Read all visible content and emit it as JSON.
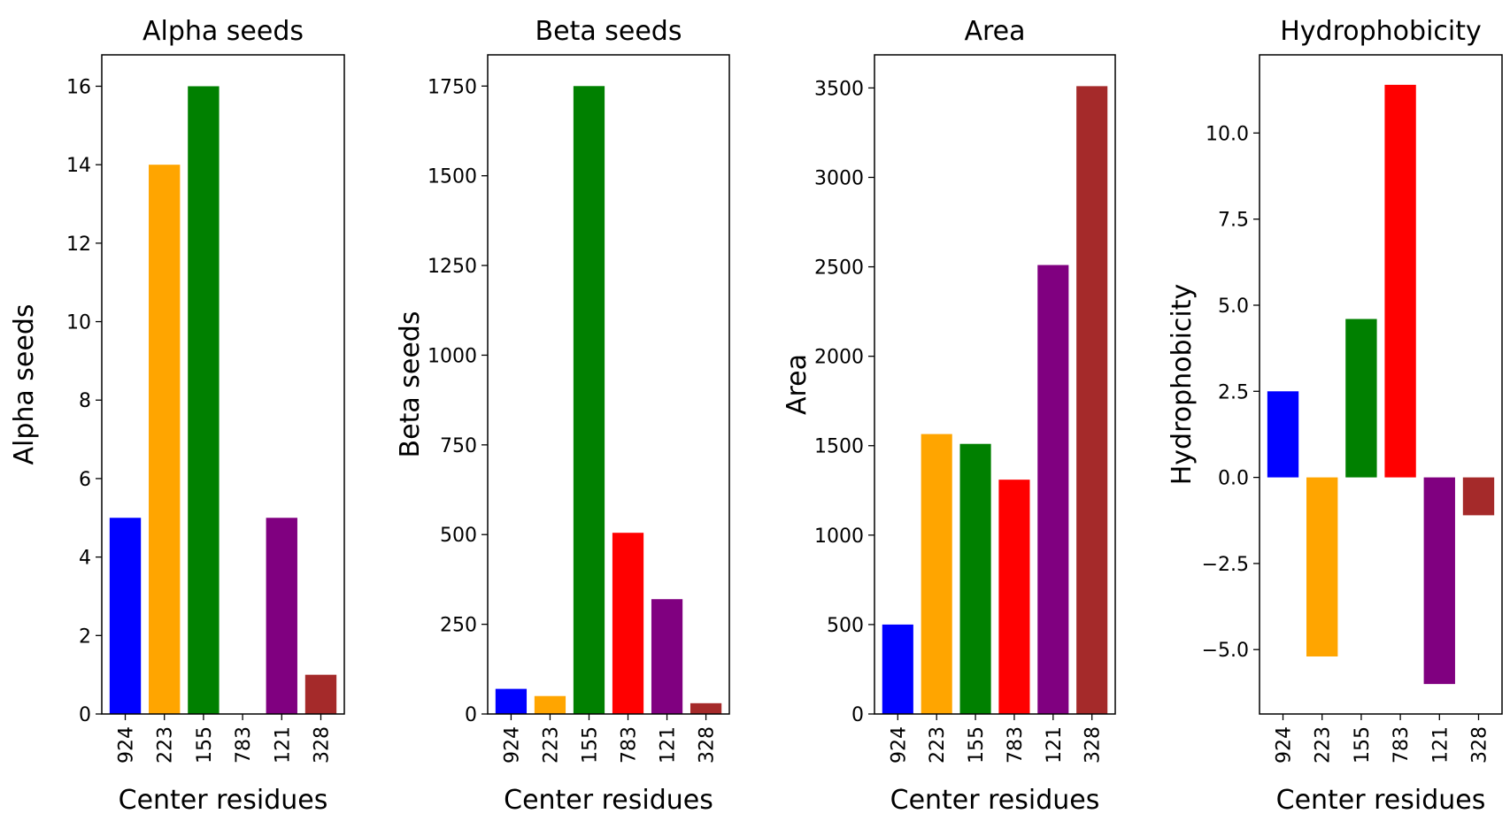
{
  "chart_data": [
    {
      "type": "bar",
      "title": "Alpha seeds",
      "xlabel": "Center residues",
      "ylabel": "Alpha seeds",
      "categories": [
        "924",
        "223",
        "155",
        "783",
        "121",
        "328"
      ],
      "values": [
        5,
        14,
        16,
        0,
        5,
        1
      ],
      "colors": [
        "#0000ff",
        "#ffa500",
        "#008000",
        "#ff0000",
        "#800080",
        "#a52a2a"
      ],
      "ylim": [
        0,
        16.8
      ],
      "yticks": [
        0,
        2,
        4,
        6,
        8,
        10,
        12,
        14,
        16
      ],
      "ytick_labels": [
        "0",
        "2",
        "4",
        "6",
        "8",
        "10",
        "12",
        "14",
        "16"
      ],
      "grid": false
    },
    {
      "type": "bar",
      "title": "Beta seeds",
      "xlabel": "Center residues",
      "ylabel": "Beta seeds",
      "categories": [
        "924",
        "223",
        "155",
        "783",
        "121",
        "328"
      ],
      "values": [
        70,
        50,
        1750,
        505,
        320,
        30
      ],
      "colors": [
        "#0000ff",
        "#ffa500",
        "#008000",
        "#ff0000",
        "#800080",
        "#a52a2a"
      ],
      "ylim": [
        0,
        1837
      ],
      "yticks": [
        0,
        250,
        500,
        750,
        1000,
        1250,
        1500,
        1750
      ],
      "ytick_labels": [
        "0",
        "250",
        "500",
        "750",
        "1000",
        "1250",
        "1500",
        "1750"
      ],
      "grid": false
    },
    {
      "type": "bar",
      "title": "Area",
      "xlabel": "Center residues",
      "ylabel": "Area",
      "categories": [
        "924",
        "223",
        "155",
        "783",
        "121",
        "328"
      ],
      "values": [
        500,
        1565,
        1510,
        1310,
        2510,
        3510
      ],
      "colors": [
        "#0000ff",
        "#ffa500",
        "#008000",
        "#ff0000",
        "#800080",
        "#a52a2a"
      ],
      "ylim": [
        0,
        3685
      ],
      "yticks": [
        0,
        500,
        1000,
        1500,
        2000,
        2500,
        3000,
        3500
      ],
      "ytick_labels": [
        "0",
        "500",
        "1000",
        "1500",
        "2000",
        "2500",
        "3000",
        "3500"
      ],
      "grid": false
    },
    {
      "type": "bar",
      "title": "Hydrophobicity",
      "xlabel": "Center residues",
      "ylabel": "Hydrophobicity",
      "categories": [
        "924",
        "223",
        "155",
        "783",
        "121",
        "328"
      ],
      "values": [
        2.5,
        -5.2,
        4.6,
        11.4,
        -6.0,
        -1.1
      ],
      "colors": [
        "#0000ff",
        "#ffa500",
        "#008000",
        "#ff0000",
        "#800080",
        "#a52a2a"
      ],
      "ylim": [
        -6.87,
        12.27
      ],
      "yticks": [
        -5,
        -2.5,
        0,
        2.5,
        5,
        7.5,
        10
      ],
      "ytick_labels": [
        "−5.0",
        "−2.5",
        "0.0",
        "2.5",
        "5.0",
        "7.5",
        "10.0"
      ],
      "grid": false
    }
  ]
}
